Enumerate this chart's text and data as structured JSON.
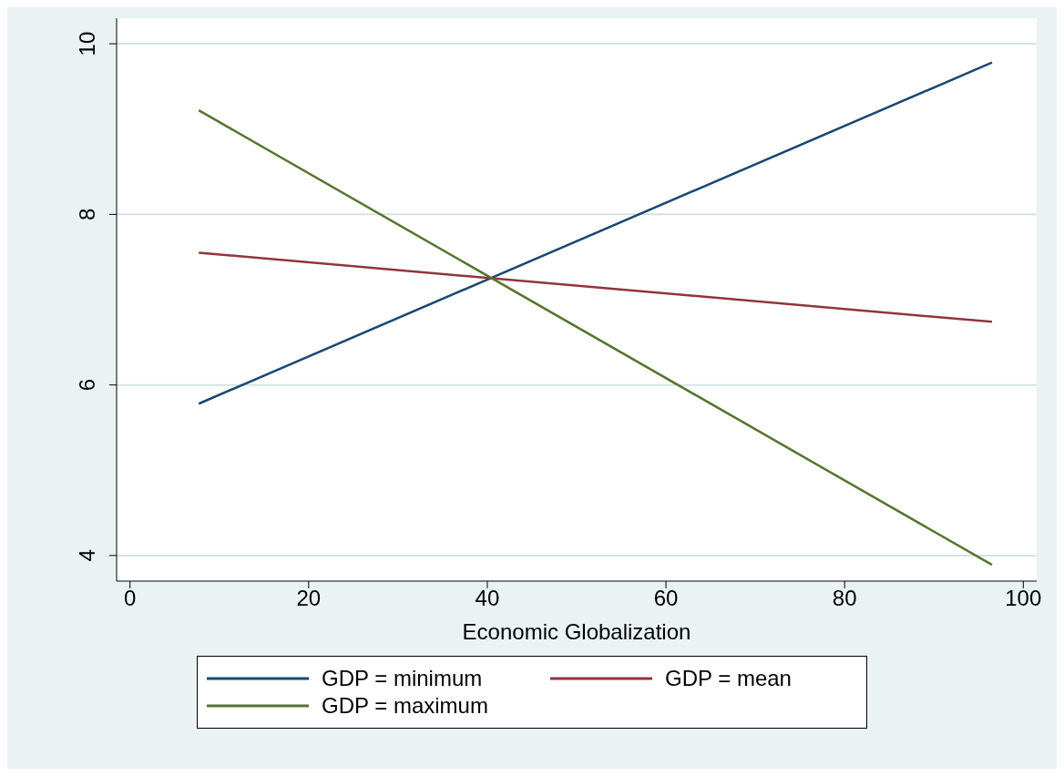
{
  "chart_data": {
    "type": "line",
    "xlabel": "Economic Globalization",
    "xlim": [
      -1.5,
      101.5
    ],
    "xticks": [
      0,
      20,
      40,
      60,
      80,
      100
    ],
    "ylim": [
      3.7,
      10.3
    ],
    "yticks": [
      4,
      6,
      8,
      10
    ],
    "grid": "y",
    "legend": "bottom",
    "marker": "none",
    "line_style": "solid",
    "x": [
      7.7,
      96.5
    ],
    "series": [
      {
        "name": "GDP = minimum",
        "color": "#1a476f",
        "values": [
          5.78,
          9.78
        ]
      },
      {
        "name": "GDP = mean",
        "color": "#90353b",
        "values": [
          7.55,
          6.74
        ]
      },
      {
        "name": "GDP = maximum",
        "color": "#55752f",
        "values": [
          9.22,
          3.89
        ]
      }
    ]
  }
}
